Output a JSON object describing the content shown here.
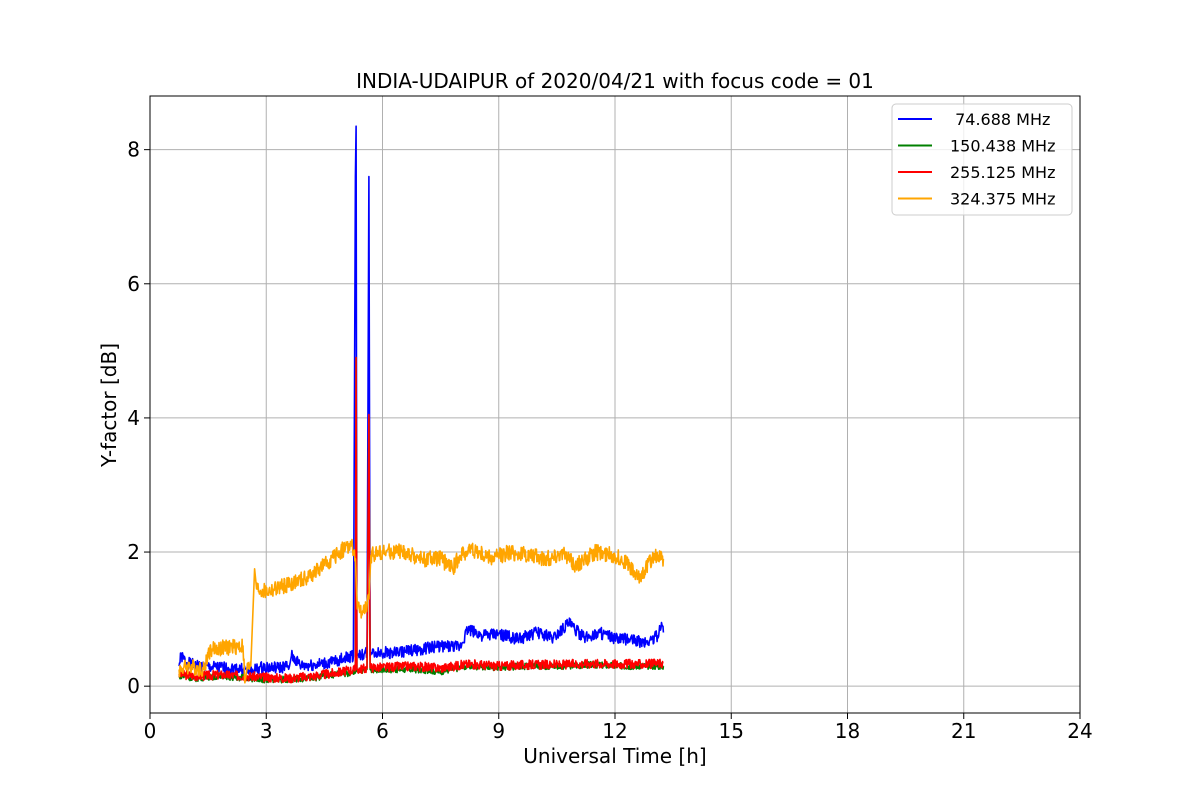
{
  "chart_data": {
    "type": "line",
    "title": "INDIA-UDAIPUR of 2020/04/21 with focus code = 01",
    "xlabel": "Universal Time [h]",
    "ylabel": "Y-factor [dB]",
    "xlim": [
      0,
      24
    ],
    "ylim": [
      -0.4,
      8.8
    ],
    "xticks": [
      0,
      3,
      6,
      9,
      12,
      15,
      18,
      21,
      24
    ],
    "yticks": [
      0,
      2,
      4,
      6,
      8
    ],
    "grid": true,
    "legend_position": "top-right",
    "series": [
      {
        "name": " 74.688 MHz",
        "color": "#0000ff",
        "x": [
          0.75,
          0.8,
          0.95,
          1.2,
          1.6,
          2.0,
          2.4,
          2.6,
          2.9,
          3.3,
          3.6,
          3.65,
          3.9,
          4.3,
          4.7,
          5.0,
          5.25,
          5.3,
          5.32,
          5.34,
          5.38,
          5.45,
          5.6,
          5.65,
          5.68,
          5.72,
          5.9,
          6.4,
          7.0,
          7.5,
          8.0,
          8.2,
          8.6,
          9.0,
          9.5,
          10.0,
          10.4,
          10.8,
          11.2,
          11.6,
          12.0,
          12.4,
          12.8,
          13.1,
          13.2,
          13.25
        ],
        "y": [
          0.3,
          0.45,
          0.35,
          0.3,
          0.28,
          0.27,
          0.25,
          0.22,
          0.28,
          0.27,
          0.3,
          0.45,
          0.3,
          0.32,
          0.35,
          0.42,
          0.45,
          7.6,
          8.35,
          0.45,
          0.48,
          0.46,
          0.5,
          7.6,
          0.45,
          0.5,
          0.5,
          0.5,
          0.55,
          0.6,
          0.58,
          0.85,
          0.75,
          0.78,
          0.7,
          0.8,
          0.72,
          0.95,
          0.72,
          0.8,
          0.7,
          0.7,
          0.65,
          0.75,
          0.95,
          0.8
        ]
      },
      {
        "name": "150.438 MHz",
        "color": "#008000",
        "x": [
          0.75,
          1.2,
          1.8,
          2.5,
          3.0,
          3.6,
          4.2,
          4.8,
          5.3,
          5.32,
          5.34,
          5.6,
          5.65,
          5.68,
          6.0,
          6.8,
          7.5,
          8.2,
          9.0,
          9.8,
          10.6,
          11.4,
          12.2,
          13.0,
          13.25
        ],
        "y": [
          0.15,
          0.12,
          0.15,
          0.12,
          0.1,
          0.1,
          0.12,
          0.18,
          0.2,
          4.9,
          0.22,
          0.25,
          4.0,
          0.25,
          0.25,
          0.25,
          0.22,
          0.3,
          0.28,
          0.3,
          0.3,
          0.32,
          0.3,
          0.3,
          0.3
        ]
      },
      {
        "name": "255.125 MHz",
        "color": "#ff0000",
        "x": [
          0.75,
          1.2,
          1.8,
          2.5,
          3.0,
          3.6,
          4.2,
          4.8,
          5.3,
          5.32,
          5.34,
          5.6,
          5.65,
          5.68,
          6.0,
          6.8,
          7.5,
          8.2,
          9.0,
          9.8,
          10.6,
          11.4,
          12.2,
          13.0,
          13.25
        ],
        "y": [
          0.18,
          0.15,
          0.17,
          0.15,
          0.13,
          0.12,
          0.15,
          0.2,
          0.25,
          4.9,
          0.25,
          0.27,
          4.05,
          0.28,
          0.28,
          0.3,
          0.27,
          0.33,
          0.3,
          0.32,
          0.32,
          0.34,
          0.33,
          0.33,
          0.35
        ]
      },
      {
        "name": "324.375 MHz",
        "color": "#ffa500",
        "x": [
          0.75,
          1.0,
          1.4,
          1.5,
          1.6,
          2.0,
          2.4,
          2.45,
          2.5,
          2.6,
          2.7,
          2.75,
          3.0,
          3.5,
          4.0,
          4.5,
          5.0,
          5.2,
          5.3,
          5.35,
          5.4,
          5.5,
          5.6,
          5.65,
          5.7,
          5.9,
          6.5,
          7.0,
          7.5,
          7.8,
          8.0,
          8.3,
          8.8,
          9.3,
          9.8,
          10.3,
          10.6,
          11.0,
          11.5,
          12.0,
          12.3,
          12.6,
          13.0,
          13.25
        ],
        "y": [
          0.25,
          0.3,
          0.25,
          0.5,
          0.55,
          0.58,
          0.6,
          0.05,
          0.25,
          0.3,
          1.75,
          1.45,
          1.4,
          1.5,
          1.6,
          1.8,
          2.05,
          2.1,
          1.9,
          1.15,
          1.15,
          1.1,
          1.2,
          1.3,
          1.95,
          2.0,
          2.0,
          1.9,
          1.9,
          1.75,
          1.95,
          2.05,
          1.9,
          2.0,
          1.95,
          1.9,
          2.0,
          1.8,
          2.0,
          1.95,
          1.85,
          1.6,
          1.95,
          1.9
        ]
      }
    ]
  }
}
